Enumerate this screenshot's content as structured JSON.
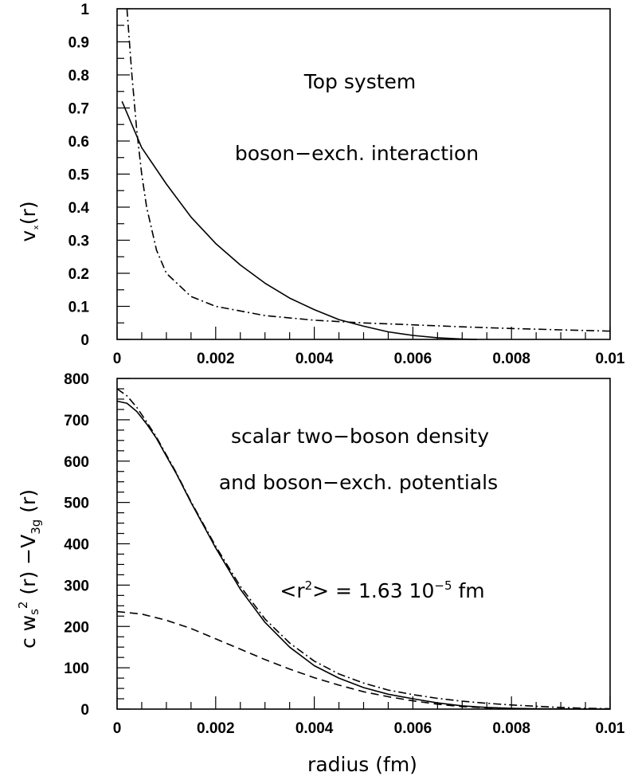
{
  "chart_data": [
    {
      "type": "line",
      "title": "",
      "xlabel": "",
      "ylabel": "vₓ(r)",
      "ylabel_main": "v",
      "ylabel_sub": "ₓ",
      "ylabel_tail": "(r)",
      "xlim": [
        0,
        0.01
      ],
      "ylim": [
        0,
        1
      ],
      "grid": false,
      "x_ticks": [
        "0",
        "0.002",
        "0.004",
        "0.006",
        "0.008",
        "0.01"
      ],
      "y_ticks": [
        "0",
        "0.1",
        "0.2",
        "0.3",
        "0.4",
        "0.5",
        "0.6",
        "0.7",
        "0.8",
        "0.9",
        "1"
      ],
      "annotations": [
        "Top system",
        "boson−exch. interaction"
      ],
      "series": [
        {
          "style": "solid",
          "x": [
            0.0001,
            0.0005,
            0.001,
            0.0015,
            0.002,
            0.0025,
            0.003,
            0.0035,
            0.004,
            0.0045,
            0.005,
            0.0055,
            0.006,
            0.0065,
            0.007,
            0.0073
          ],
          "y": [
            0.72,
            0.58,
            0.47,
            0.37,
            0.29,
            0.225,
            0.17,
            0.125,
            0.09,
            0.06,
            0.04,
            0.023,
            0.012,
            0.005,
            0.001,
            0.0
          ]
        },
        {
          "style": "dashdot",
          "x": [
            0.0002,
            0.0003,
            0.0004,
            0.0005,
            0.0006,
            0.0008,
            0.001,
            0.0015,
            0.002,
            0.003,
            0.004,
            0.005,
            0.006,
            0.007,
            0.008,
            0.009,
            0.01
          ],
          "y": [
            1.0,
            0.8,
            0.63,
            0.5,
            0.4,
            0.27,
            0.2,
            0.13,
            0.1,
            0.072,
            0.058,
            0.05,
            0.044,
            0.038,
            0.033,
            0.029,
            0.025
          ]
        }
      ]
    },
    {
      "type": "line",
      "title": "",
      "xlabel": "radius (fm)",
      "ylabel": "c wₛ² (r)   −V₃g (r)",
      "ylabel_parts": {
        "c": "c w",
        "s_sub": "s",
        "sup2": "2",
        "r1": " (r)   −V",
        "sub3g": "3g",
        "r2": " (r)"
      },
      "xlim": [
        0,
        0.01
      ],
      "ylim": [
        0,
        800
      ],
      "grid": false,
      "x_ticks": [
        "0",
        "0.002",
        "0.004",
        "0.006",
        "0.008",
        "0.01"
      ],
      "y_ticks": [
        "0",
        "100",
        "200",
        "300",
        "400",
        "500",
        "600",
        "700",
        "800"
      ],
      "annotations": [
        "scalar two−boson density",
        "and boson−exch. potentials"
      ],
      "radius_annotation": {
        "main": "<r",
        "sup2": "2",
        "mid": "> = 1.63 10",
        "sup_exp": "−5",
        "unit": " fm"
      },
      "series": [
        {
          "style": "solid",
          "x": [
            0,
            0.0002,
            0.0004,
            0.0006,
            0.0008,
            0.001,
            0.0012,
            0.0015,
            0.002,
            0.0025,
            0.003,
            0.0035,
            0.004,
            0.0045,
            0.005,
            0.0055,
            0.006,
            0.0065,
            0.007,
            0.0075,
            0.008,
            0.0085,
            0.009,
            0.0095,
            0.01
          ],
          "y": [
            745,
            740,
            720,
            690,
            655,
            612,
            570,
            500,
            390,
            290,
            210,
            150,
            105,
            75,
            52,
            36,
            25,
            15,
            8,
            4,
            2,
            1,
            0.5,
            0.2,
            0
          ]
        },
        {
          "style": "dashdot",
          "x": [
            0,
            0.0002,
            0.0004,
            0.0006,
            0.0008,
            0.001,
            0.0012,
            0.0015,
            0.002,
            0.0025,
            0.003,
            0.0035,
            0.004,
            0.0045,
            0.005,
            0.0055,
            0.006,
            0.0065,
            0.007,
            0.0075,
            0.008,
            0.0085,
            0.009,
            0.0095,
            0.01
          ],
          "y": [
            775,
            758,
            730,
            695,
            658,
            615,
            572,
            502,
            394,
            297,
            218,
            160,
            116,
            85,
            63,
            46,
            35,
            26,
            19,
            14,
            10,
            7,
            4,
            2,
            1
          ]
        },
        {
          "style": "dashed",
          "x": [
            0,
            0.0005,
            0.001,
            0.0015,
            0.002,
            0.0025,
            0.003,
            0.0035,
            0.004,
            0.0045,
            0.005,
            0.0055,
            0.006,
            0.0065,
            0.007,
            0.0075,
            0.008
          ],
          "y": [
            236,
            230,
            215,
            195,
            170,
            145,
            120,
            97,
            76,
            58,
            42,
            30,
            20,
            12,
            6,
            3,
            1
          ]
        }
      ]
    }
  ]
}
